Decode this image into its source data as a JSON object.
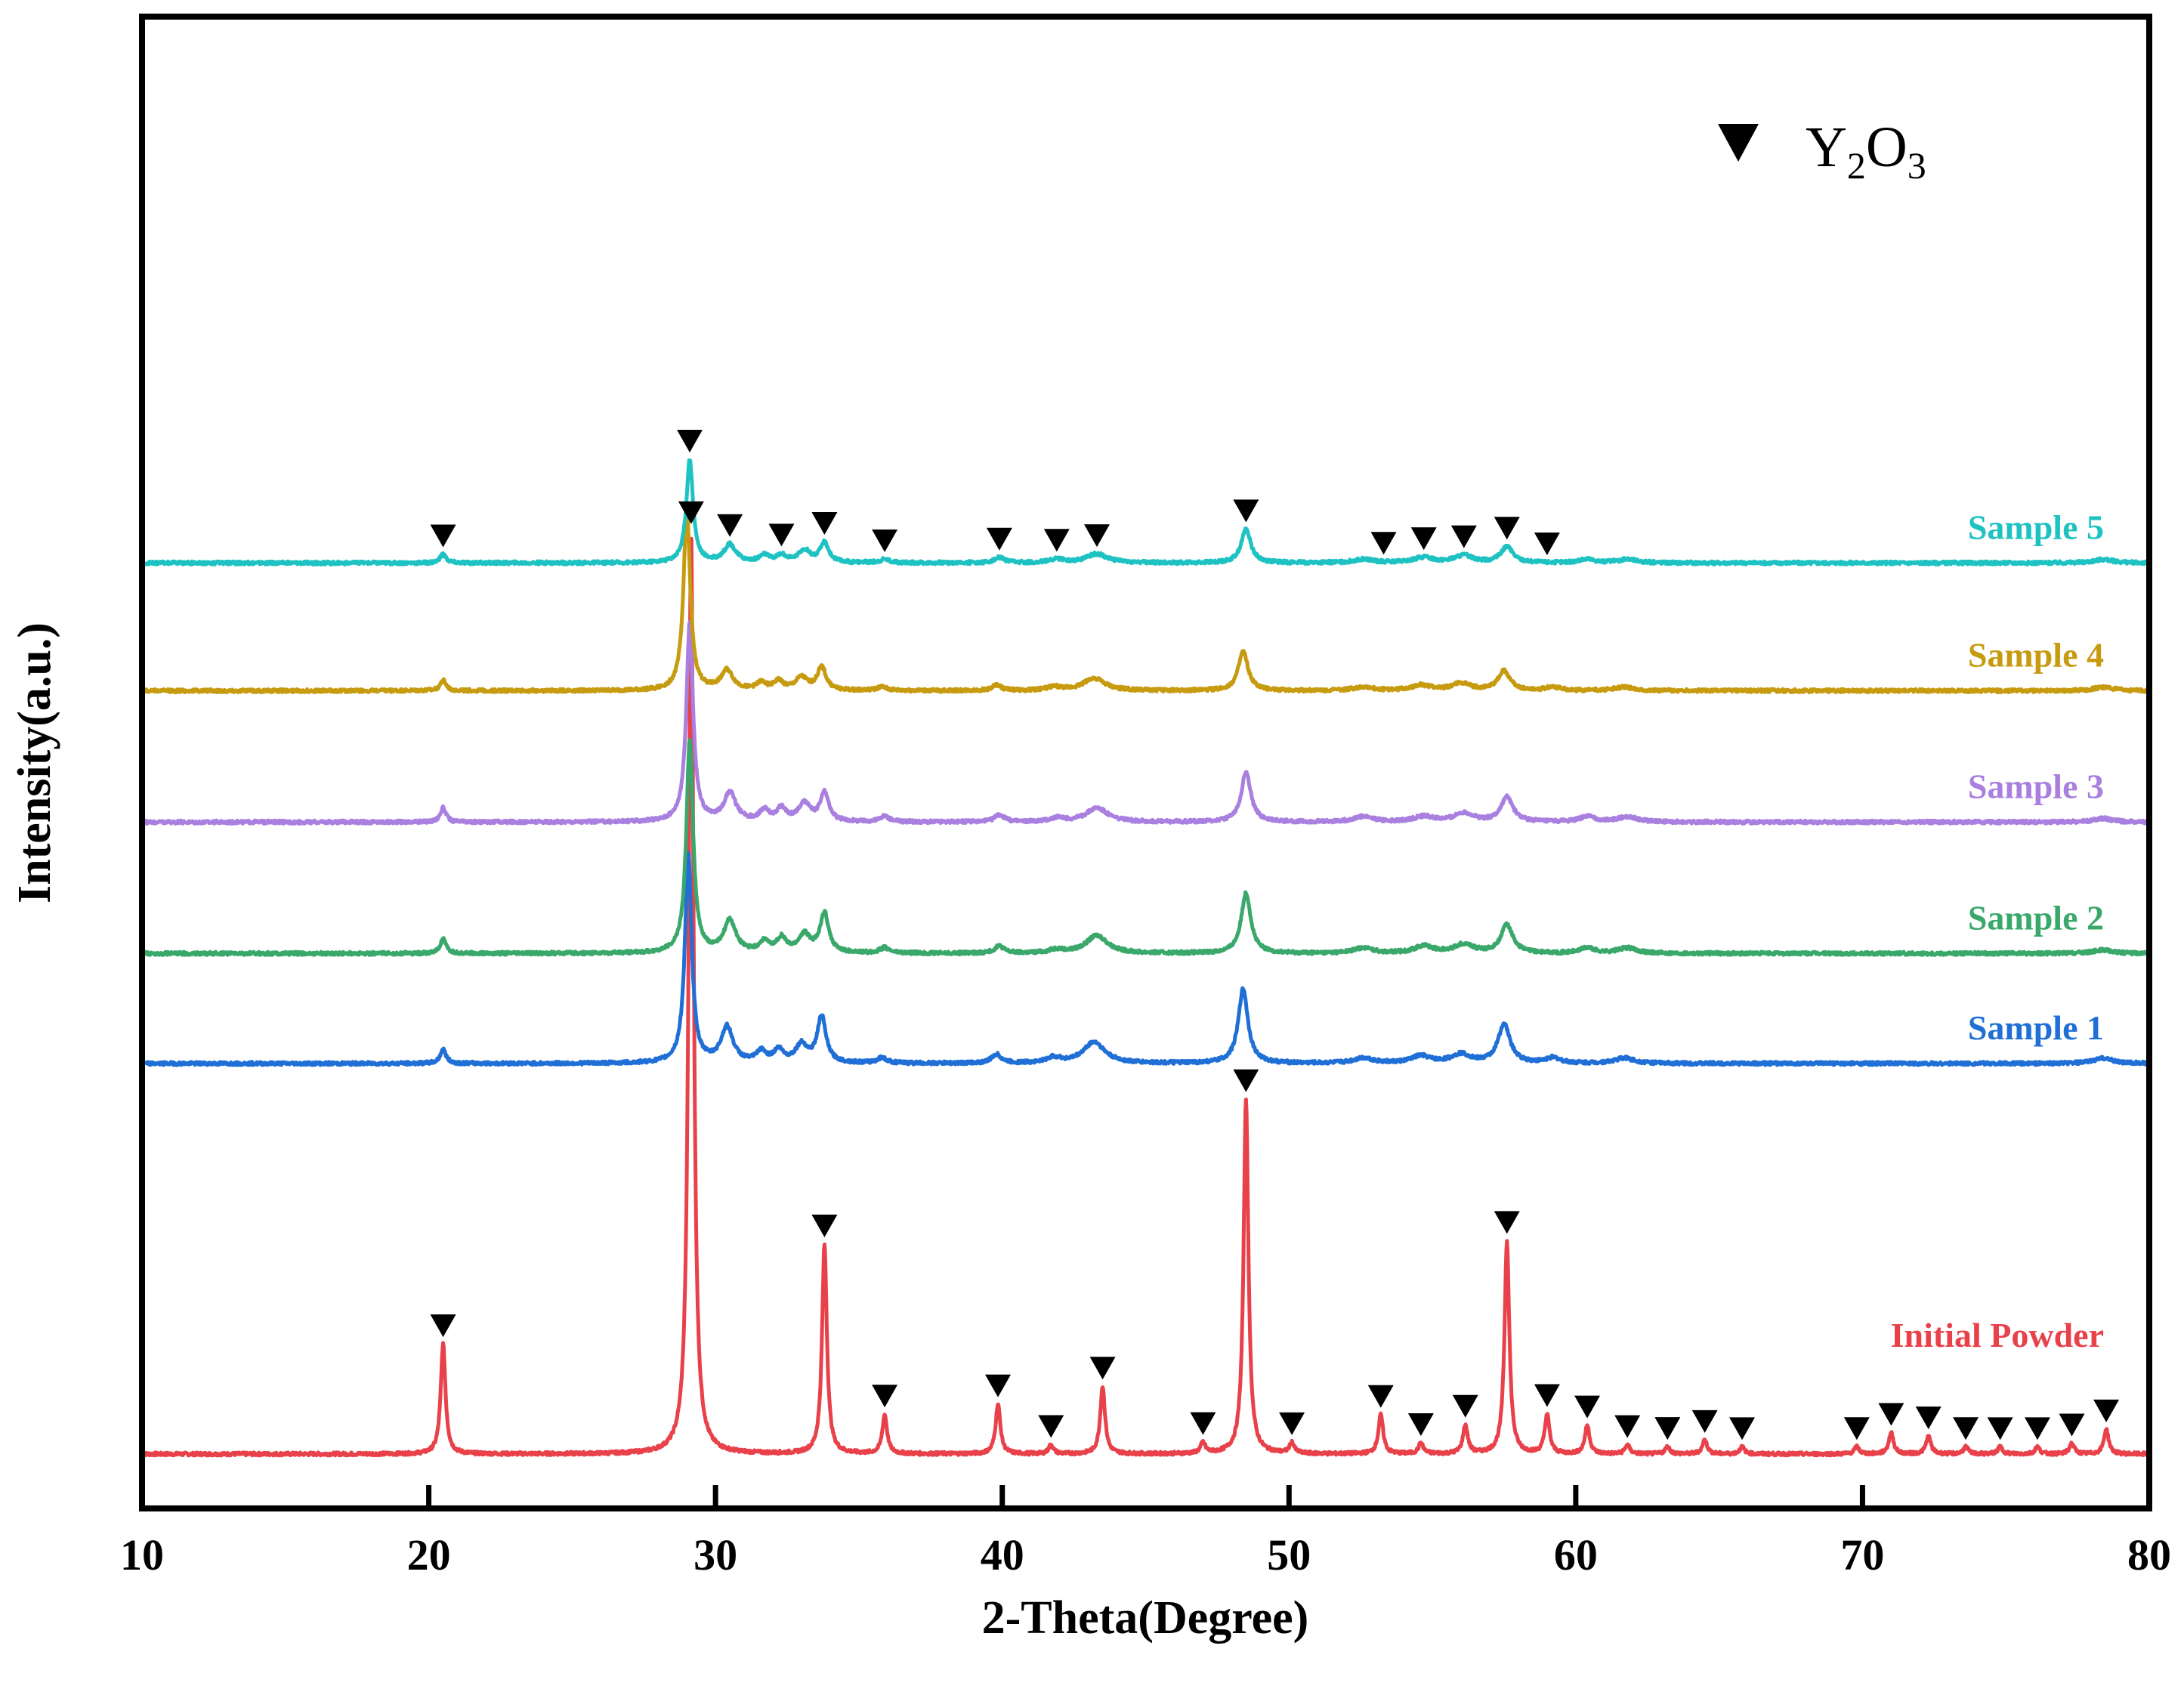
{
  "chart_data": {
    "type": "line",
    "title": "",
    "xlabel": "2-Theta(Degree)",
    "ylabel": "Intensity(a.u.)",
    "xlim": [
      10,
      80
    ],
    "xticks": [
      "10",
      "20",
      "30",
      "40",
      "50",
      "60",
      "70",
      "80"
    ],
    "y_ticks_shown": false,
    "grid": false,
    "legend": {
      "marker": "down-triangle",
      "label_main": "Y",
      "label_sub1": "2",
      "label_mid": "O",
      "label_sub2": "3",
      "placement": "top-right"
    },
    "series": [
      {
        "name": "Initial Powder",
        "color": "#e8414a",
        "baseline": 0,
        "peaks": [
          {
            "x": 20.5,
            "h": 0.62,
            "w": 0.1
          },
          {
            "x": 29.15,
            "h": 5.2,
            "w": 0.1
          },
          {
            "x": 33.8,
            "h": 1.18,
            "w": 0.1
          },
          {
            "x": 35.9,
            "h": 0.22,
            "w": 0.1
          },
          {
            "x": 39.85,
            "h": 0.28,
            "w": 0.1
          },
          {
            "x": 41.7,
            "h": 0.05,
            "w": 0.1
          },
          {
            "x": 43.5,
            "h": 0.38,
            "w": 0.1
          },
          {
            "x": 47.0,
            "h": 0.06,
            "w": 0.1
          },
          {
            "x": 48.5,
            "h": 2.0,
            "w": 0.1
          },
          {
            "x": 50.1,
            "h": 0.06,
            "w": 0.1
          },
          {
            "x": 53.2,
            "h": 0.22,
            "w": 0.1
          },
          {
            "x": 54.6,
            "h": 0.06,
            "w": 0.1
          },
          {
            "x": 56.15,
            "h": 0.16,
            "w": 0.1
          },
          {
            "x": 57.6,
            "h": 1.2,
            "w": 0.1
          },
          {
            "x": 59.0,
            "h": 0.22,
            "w": 0.1
          },
          {
            "x": 60.4,
            "h": 0.16,
            "w": 0.1
          },
          {
            "x": 61.8,
            "h": 0.05,
            "w": 0.1
          },
          {
            "x": 63.2,
            "h": 0.04,
            "w": 0.1
          },
          {
            "x": 64.5,
            "h": 0.08,
            "w": 0.1
          },
          {
            "x": 65.8,
            "h": 0.04,
            "w": 0.1
          },
          {
            "x": 69.8,
            "h": 0.04,
            "w": 0.1
          },
          {
            "x": 71.0,
            "h": 0.12,
            "w": 0.1
          },
          {
            "x": 72.3,
            "h": 0.1,
            "w": 0.1
          },
          {
            "x": 73.6,
            "h": 0.04,
            "w": 0.1
          },
          {
            "x": 74.8,
            "h": 0.04,
            "w": 0.1
          },
          {
            "x": 76.1,
            "h": 0.04,
            "w": 0.1
          },
          {
            "x": 77.3,
            "h": 0.06,
            "w": 0.1
          },
          {
            "x": 78.5,
            "h": 0.14,
            "w": 0.1
          }
        ],
        "markers": [
          20.5,
          29.15,
          33.8,
          35.9,
          39.85,
          41.7,
          43.5,
          47.0,
          48.5,
          50.1,
          53.2,
          54.6,
          56.15,
          57.6,
          59.0,
          60.4,
          61.8,
          63.2,
          64.5,
          65.8,
          69.8,
          71.0,
          72.3,
          73.6,
          74.8,
          76.1,
          77.3,
          78.5
        ]
      },
      {
        "name": "Sample 1",
        "color": "#1f6fd6",
        "baseline": 2.2,
        "peaks": [
          {
            "x": 20.5,
            "h": 0.08,
            "w": 0.12
          },
          {
            "x": 29.05,
            "h": 1.18,
            "w": 0.14
          },
          {
            "x": 30.4,
            "h": 0.2,
            "w": 0.25
          },
          {
            "x": 31.6,
            "h": 0.06,
            "w": 0.2
          },
          {
            "x": 32.2,
            "h": 0.07,
            "w": 0.2
          },
          {
            "x": 33.0,
            "h": 0.1,
            "w": 0.25
          },
          {
            "x": 33.7,
            "h": 0.26,
            "w": 0.18
          },
          {
            "x": 35.8,
            "h": 0.03,
            "w": 0.2
          },
          {
            "x": 39.8,
            "h": 0.05,
            "w": 0.2
          },
          {
            "x": 41.8,
            "h": 0.03,
            "w": 0.3
          },
          {
            "x": 43.2,
            "h": 0.12,
            "w": 0.45
          },
          {
            "x": 48.4,
            "h": 0.42,
            "w": 0.2
          },
          {
            "x": 52.6,
            "h": 0.03,
            "w": 0.4
          },
          {
            "x": 54.6,
            "h": 0.04,
            "w": 0.4
          },
          {
            "x": 56.0,
            "h": 0.05,
            "w": 0.4
          },
          {
            "x": 57.5,
            "h": 0.22,
            "w": 0.25
          },
          {
            "x": 59.2,
            "h": 0.03,
            "w": 0.3
          },
          {
            "x": 61.7,
            "h": 0.03,
            "w": 0.4
          },
          {
            "x": 78.4,
            "h": 0.03,
            "w": 0.4
          }
        ],
        "markers": []
      },
      {
        "name": "Sample 2",
        "color": "#3aa86b",
        "baseline": 2.82,
        "peaks": [
          {
            "x": 20.5,
            "h": 0.08,
            "w": 0.12
          },
          {
            "x": 29.1,
            "h": 1.2,
            "w": 0.14
          },
          {
            "x": 30.5,
            "h": 0.18,
            "w": 0.25
          },
          {
            "x": 31.7,
            "h": 0.06,
            "w": 0.2
          },
          {
            "x": 32.3,
            "h": 0.08,
            "w": 0.2
          },
          {
            "x": 33.1,
            "h": 0.1,
            "w": 0.25
          },
          {
            "x": 33.8,
            "h": 0.22,
            "w": 0.18
          },
          {
            "x": 35.9,
            "h": 0.03,
            "w": 0.2
          },
          {
            "x": 39.9,
            "h": 0.04,
            "w": 0.2
          },
          {
            "x": 41.9,
            "h": 0.02,
            "w": 0.3
          },
          {
            "x": 43.3,
            "h": 0.1,
            "w": 0.45
          },
          {
            "x": 48.5,
            "h": 0.34,
            "w": 0.2
          },
          {
            "x": 52.6,
            "h": 0.03,
            "w": 0.4
          },
          {
            "x": 54.7,
            "h": 0.04,
            "w": 0.4
          },
          {
            "x": 56.1,
            "h": 0.05,
            "w": 0.4
          },
          {
            "x": 57.6,
            "h": 0.16,
            "w": 0.25
          },
          {
            "x": 60.4,
            "h": 0.03,
            "w": 0.3
          },
          {
            "x": 61.8,
            "h": 0.03,
            "w": 0.4
          },
          {
            "x": 78.4,
            "h": 0.02,
            "w": 0.4
          }
        ],
        "markers": []
      },
      {
        "name": "Sample 3",
        "color": "#a97fe0",
        "baseline": 3.56,
        "peaks": [
          {
            "x": 20.5,
            "h": 0.08,
            "w": 0.12
          },
          {
            "x": 29.1,
            "h": 1.12,
            "w": 0.14
          },
          {
            "x": 30.5,
            "h": 0.16,
            "w": 0.25
          },
          {
            "x": 31.7,
            "h": 0.06,
            "w": 0.2
          },
          {
            "x": 32.3,
            "h": 0.07,
            "w": 0.2
          },
          {
            "x": 33.1,
            "h": 0.1,
            "w": 0.25
          },
          {
            "x": 33.8,
            "h": 0.16,
            "w": 0.18
          },
          {
            "x": 35.9,
            "h": 0.03,
            "w": 0.2
          },
          {
            "x": 39.9,
            "h": 0.04,
            "w": 0.2
          },
          {
            "x": 41.9,
            "h": 0.02,
            "w": 0.3
          },
          {
            "x": 43.3,
            "h": 0.08,
            "w": 0.45
          },
          {
            "x": 48.5,
            "h": 0.28,
            "w": 0.2
          },
          {
            "x": 52.6,
            "h": 0.03,
            "w": 0.4
          },
          {
            "x": 54.7,
            "h": 0.03,
            "w": 0.4
          },
          {
            "x": 56.1,
            "h": 0.05,
            "w": 0.4
          },
          {
            "x": 57.6,
            "h": 0.14,
            "w": 0.25
          },
          {
            "x": 60.4,
            "h": 0.03,
            "w": 0.3
          },
          {
            "x": 61.8,
            "h": 0.03,
            "w": 0.4
          },
          {
            "x": 78.4,
            "h": 0.02,
            "w": 0.4
          }
        ],
        "markers": []
      },
      {
        "name": "Sample 4",
        "color": "#c79b10",
        "baseline": 4.3,
        "peaks": [
          {
            "x": 20.5,
            "h": 0.06,
            "w": 0.12
          },
          {
            "x": 29.0,
            "h": 1.02,
            "w": 0.14
          },
          {
            "x": 30.4,
            "h": 0.11,
            "w": 0.25
          },
          {
            "x": 31.6,
            "h": 0.04,
            "w": 0.2
          },
          {
            "x": 32.2,
            "h": 0.05,
            "w": 0.2
          },
          {
            "x": 33.0,
            "h": 0.07,
            "w": 0.25
          },
          {
            "x": 33.7,
            "h": 0.13,
            "w": 0.18
          },
          {
            "x": 35.8,
            "h": 0.02,
            "w": 0.2
          },
          {
            "x": 39.8,
            "h": 0.03,
            "w": 0.2
          },
          {
            "x": 41.8,
            "h": 0.02,
            "w": 0.3
          },
          {
            "x": 43.2,
            "h": 0.07,
            "w": 0.45
          },
          {
            "x": 48.4,
            "h": 0.22,
            "w": 0.2
          },
          {
            "x": 52.6,
            "h": 0.02,
            "w": 0.4
          },
          {
            "x": 54.6,
            "h": 0.03,
            "w": 0.4
          },
          {
            "x": 56.0,
            "h": 0.04,
            "w": 0.4
          },
          {
            "x": 57.5,
            "h": 0.11,
            "w": 0.25
          },
          {
            "x": 59.2,
            "h": 0.02,
            "w": 0.3
          },
          {
            "x": 61.7,
            "h": 0.02,
            "w": 0.4
          },
          {
            "x": 78.4,
            "h": 0.02,
            "w": 0.4
          }
        ],
        "markers": []
      },
      {
        "name": "Sample 5",
        "color": "#1fc2c2",
        "baseline": 5.02,
        "peaks": [
          {
            "x": 20.5,
            "h": 0.05,
            "w": 0.12
          },
          {
            "x": 29.1,
            "h": 0.58,
            "w": 0.14
          },
          {
            "x": 30.5,
            "h": 0.1,
            "w": 0.25
          },
          {
            "x": 31.7,
            "h": 0.04,
            "w": 0.2
          },
          {
            "x": 32.3,
            "h": 0.04,
            "w": 0.2
          },
          {
            "x": 33.1,
            "h": 0.07,
            "w": 0.25
          },
          {
            "x": 33.8,
            "h": 0.11,
            "w": 0.18
          },
          {
            "x": 35.9,
            "h": 0.02,
            "w": 0.2
          },
          {
            "x": 39.9,
            "h": 0.03,
            "w": 0.2
          },
          {
            "x": 41.9,
            "h": 0.02,
            "w": 0.3
          },
          {
            "x": 43.3,
            "h": 0.05,
            "w": 0.45
          },
          {
            "x": 48.5,
            "h": 0.19,
            "w": 0.2
          },
          {
            "x": 52.6,
            "h": 0.02,
            "w": 0.4
          },
          {
            "x": 54.7,
            "h": 0.03,
            "w": 0.4
          },
          {
            "x": 56.1,
            "h": 0.04,
            "w": 0.4
          },
          {
            "x": 57.6,
            "h": 0.09,
            "w": 0.25
          },
          {
            "x": 60.4,
            "h": 0.02,
            "w": 0.3
          },
          {
            "x": 61.8,
            "h": 0.02,
            "w": 0.4
          },
          {
            "x": 78.4,
            "h": 0.02,
            "w": 0.4
          }
        ],
        "markers": [
          20.5,
          29.1,
          30.5,
          32.3,
          33.8,
          35.9,
          39.9,
          41.9,
          43.3,
          48.5,
          53.3,
          54.7,
          56.1,
          57.6,
          59.0
        ]
      }
    ]
  }
}
